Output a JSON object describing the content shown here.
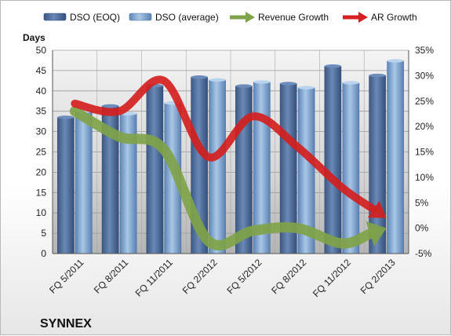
{
  "chart_data": {
    "type": "bar",
    "categories": [
      "FQ 5/2011",
      "FQ 8/2011",
      "FQ 11/2011",
      "FQ 2/2012",
      "FQ 5/2012",
      "FQ 8/2012",
      "FQ 11/2012",
      "FQ 2/2013"
    ],
    "series": [
      {
        "name": "DSO (EOQ)",
        "type": "bar",
        "axis": "left",
        "color": "#4f6d99",
        "values": [
          33.5,
          36.3,
          41.3,
          43.4,
          41.2,
          41.8,
          46.1,
          43.8
        ]
      },
      {
        "name": "DSO (average)",
        "type": "bar",
        "axis": "left",
        "color": "#8fb3d9",
        "values": [
          35.0,
          34.4,
          37.0,
          42.7,
          42.2,
          40.8,
          42.0,
          47.4
        ]
      },
      {
        "name": "Revenue Growth",
        "type": "line",
        "axis": "right",
        "color": "#7fa348",
        "values": [
          0.23,
          0.18,
          0.155,
          -0.025,
          -0.005,
          0.0,
          -0.03,
          0.0
        ]
      },
      {
        "name": "AR Growth",
        "type": "line",
        "axis": "right",
        "color": "#d42020",
        "values": [
          0.245,
          0.23,
          0.29,
          0.14,
          0.22,
          0.16,
          0.08,
          0.02
        ]
      }
    ],
    "ylabel": "Days",
    "ylim": [
      0,
      50
    ],
    "yticks": [
      "0",
      "5",
      "10",
      "15",
      "20",
      "25",
      "30",
      "35",
      "40",
      "45",
      "50"
    ],
    "y2lim": [
      -0.05,
      0.35
    ],
    "y2ticks": [
      "-5%",
      "0%",
      "5%",
      "10%",
      "15%",
      "20%",
      "25%",
      "30%",
      "35%"
    ],
    "legend_position": "top",
    "grid": true,
    "company": "SYNNEX"
  }
}
